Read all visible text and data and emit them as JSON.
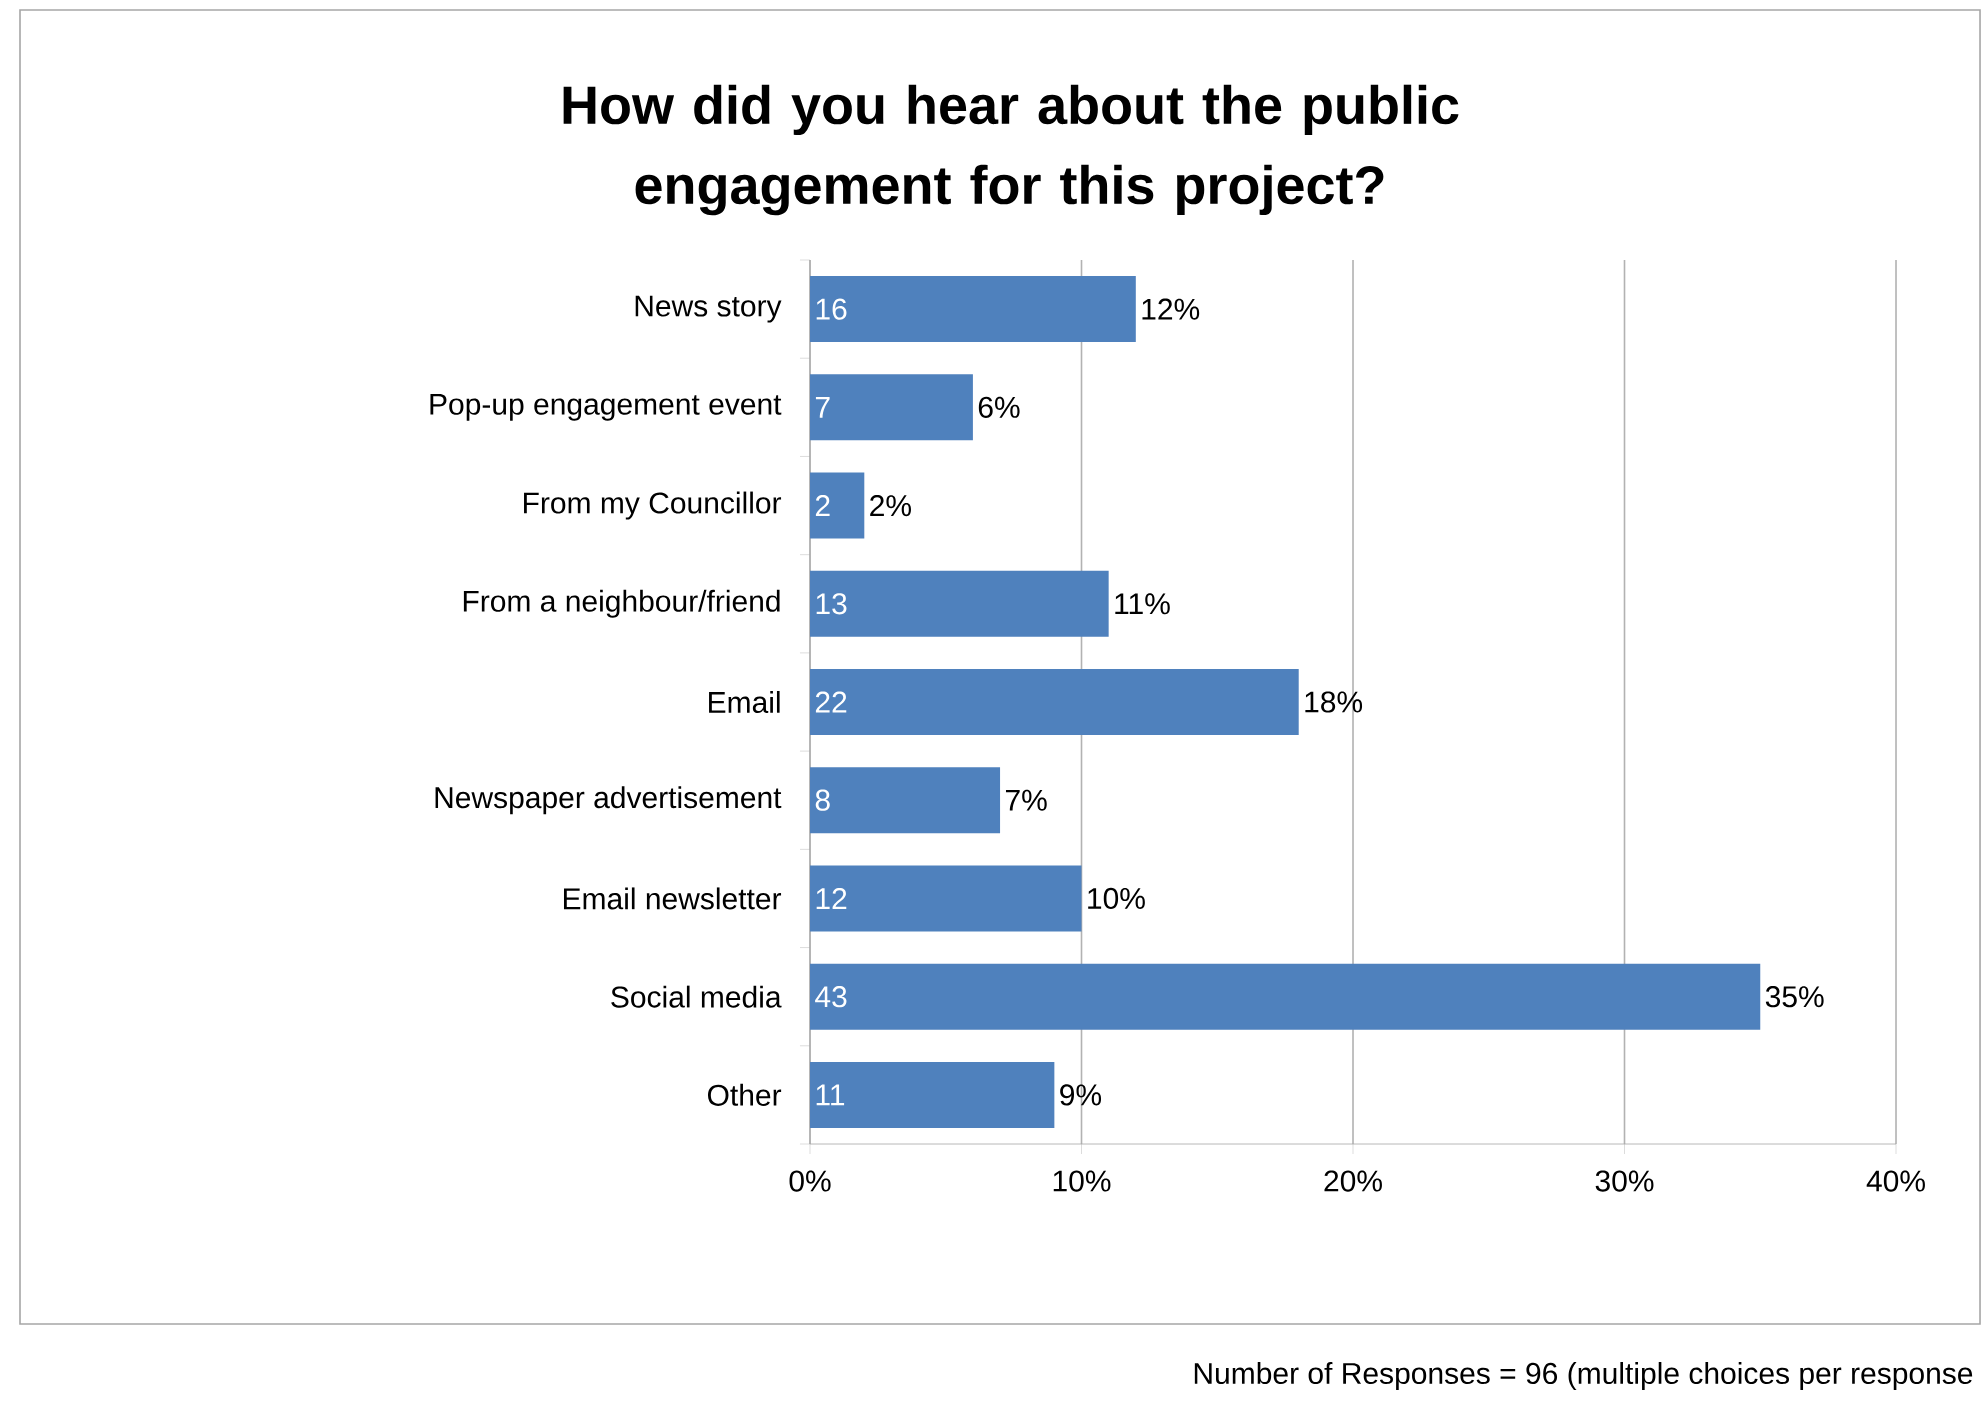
{
  "chart_data": {
    "type": "bar",
    "orientation": "horizontal",
    "title": "How did you hear about the public engagement for this project?",
    "categories": [
      "News story",
      "Pop-up engagement event",
      "From my Councillor",
      "From a neighbour/friend",
      "Email",
      "Newspaper advertisement",
      "Email newsletter",
      "Social media",
      "Other"
    ],
    "values": [
      12,
      6,
      2,
      11,
      18,
      7,
      10,
      35,
      9
    ],
    "value_labels": [
      "12%",
      "6%",
      "2%",
      "11%",
      "18%",
      "7%",
      "10%",
      "35%",
      "9%"
    ],
    "color": "#4f81bd",
    "xlim": [
      0,
      40
    ],
    "xticks": [
      {
        "value": 0,
        "label": "0%"
      },
      {
        "value": 10,
        "label": "10%"
      },
      {
        "value": 20,
        "label": "20%"
      },
      {
        "value": 30,
        "label": "30%"
      },
      {
        "value": 40,
        "label": "40%"
      }
    ],
    "grid": "x",
    "annotations": [
      {
        "text": "16",
        "y": "News story"
      },
      {
        "text": "7",
        "y": "Pop-up engagement event"
      },
      {
        "text": "2",
        "y": "From my Councillor"
      },
      {
        "text": "13",
        "y": "From a neighbour/friend"
      },
      {
        "text": "22",
        "y": "Email"
      },
      {
        "text": "8",
        "y": "Newspaper advertisement"
      },
      {
        "text": "12",
        "y": "Email newsletter"
      },
      {
        "text": "43",
        "y": "Social media"
      },
      {
        "text": "11",
        "y": "Other"
      },
      "Number of Responses = 96 (multiple choices per response"
    ]
  }
}
